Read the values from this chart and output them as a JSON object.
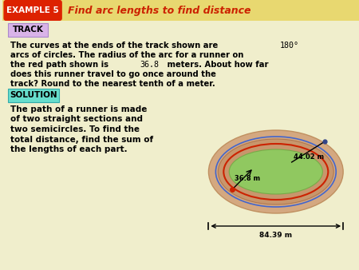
{
  "bg_color": "#f0eecc",
  "header_bg": "#e8d870",
  "example_box_bg": "#dd2200",
  "example_label": "EXAMPLE 5",
  "header_title": "Find arc lengths to find distance",
  "header_title_color": "#cc2200",
  "track_label": "TRACK",
  "track_label_bg": "#d9b3e8",
  "solution_label": "SOLUTION",
  "solution_label_bg": "#66ddcc",
  "track_para": "The curves at the ends of the track shown are 180°\narcs of circles. The radius of the arc for a runner on\nthe red path shown is 36.8 meters. About how far\ndoes this runner travel to go once around the\ntrack? Round to the nearest tenth of a meter.",
  "sol_para": "The path of a runner is made\nof two straight sections and\ntwo semicircles. To find the\ntotal distance, find the sum of\nthe lengths of each part.",
  "dim_4402": "44.02 m",
  "dim_368": "36.8 m",
  "dim_8439": "84.39 m",
  "outer_color": "#d4a880",
  "mid_color": "#c89868",
  "green_color": "#90c860",
  "red_color": "#cc2200",
  "blue_color": "#4466cc"
}
